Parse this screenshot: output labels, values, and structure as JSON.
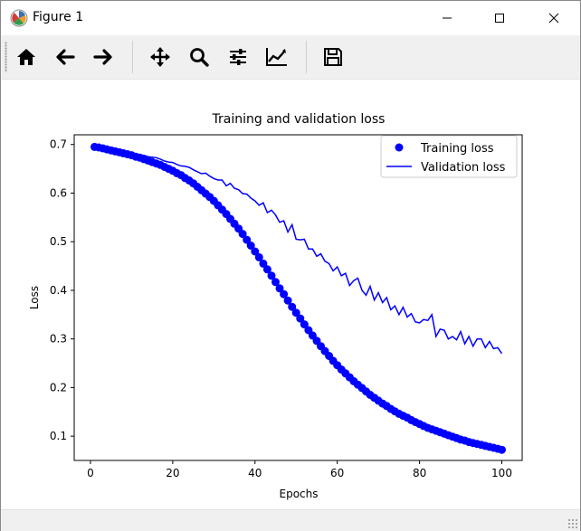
{
  "window": {
    "title": "Figure 1"
  },
  "toolbar": {
    "buttons": [
      {
        "name": "home",
        "icon": "home-icon"
      },
      {
        "name": "back",
        "icon": "arrow-left-icon"
      },
      {
        "name": "forward",
        "icon": "arrow-right-icon"
      },
      {
        "name": "pan",
        "icon": "move-icon"
      },
      {
        "name": "zoom",
        "icon": "search-icon"
      },
      {
        "name": "configure-subplots",
        "icon": "sliders-icon"
      },
      {
        "name": "edit-axis",
        "icon": "line-chart-icon"
      },
      {
        "name": "save",
        "icon": "save-icon"
      }
    ]
  },
  "colors": {
    "series": "#0000ff",
    "axis": "#000000"
  },
  "chart_data": {
    "type": "line",
    "title": "Training and validation loss",
    "xlabel": "Epochs",
    "ylabel": "Loss",
    "xlim": [
      -3.95,
      104.95
    ],
    "ylim": [
      0.05,
      0.72
    ],
    "xticks": [
      0,
      20,
      40,
      60,
      80,
      100
    ],
    "yticks": [
      0.1,
      0.2,
      0.3,
      0.4,
      0.5,
      0.6,
      0.7
    ],
    "xtick_labels": [
      "0",
      "20",
      "40",
      "60",
      "80",
      "100"
    ],
    "ytick_labels": [
      "0.1",
      "0.2",
      "0.3",
      "0.4",
      "0.5",
      "0.6",
      "0.7"
    ],
    "legend": {
      "position": "top-right",
      "labels": [
        "Training loss",
        "Validation loss"
      ]
    },
    "series": [
      {
        "name": "Training loss",
        "style": "markers",
        "x": [
          1,
          2,
          3,
          4,
          5,
          6,
          7,
          8,
          9,
          10,
          11,
          12,
          13,
          14,
          15,
          16,
          17,
          18,
          19,
          20,
          21,
          22,
          23,
          24,
          25,
          26,
          27,
          28,
          29,
          30,
          31,
          32,
          33,
          34,
          35,
          36,
          37,
          38,
          39,
          40,
          41,
          42,
          43,
          44,
          45,
          46,
          47,
          48,
          49,
          50,
          51,
          52,
          53,
          54,
          55,
          56,
          57,
          58,
          59,
          60,
          61,
          62,
          63,
          64,
          65,
          66,
          67,
          68,
          69,
          70,
          71,
          72,
          73,
          74,
          75,
          76,
          77,
          78,
          79,
          80,
          81,
          82,
          83,
          84,
          85,
          86,
          87,
          88,
          89,
          90,
          91,
          92,
          93,
          94,
          95,
          96,
          97,
          98,
          99,
          100
        ],
        "values": [
          0.695,
          0.694,
          0.692,
          0.69,
          0.688,
          0.686,
          0.684,
          0.682,
          0.68,
          0.678,
          0.675,
          0.673,
          0.67,
          0.667,
          0.664,
          0.661,
          0.658,
          0.654,
          0.65,
          0.646,
          0.641,
          0.637,
          0.631,
          0.626,
          0.62,
          0.613,
          0.606,
          0.599,
          0.592,
          0.584,
          0.575,
          0.566,
          0.557,
          0.547,
          0.537,
          0.527,
          0.516,
          0.504,
          0.492,
          0.48,
          0.468,
          0.455,
          0.443,
          0.43,
          0.417,
          0.404,
          0.392,
          0.379,
          0.366,
          0.354,
          0.342,
          0.33,
          0.318,
          0.307,
          0.296,
          0.285,
          0.275,
          0.265,
          0.255,
          0.246,
          0.237,
          0.229,
          0.221,
          0.213,
          0.206,
          0.199,
          0.192,
          0.185,
          0.179,
          0.173,
          0.167,
          0.162,
          0.156,
          0.151,
          0.146,
          0.142,
          0.138,
          0.133,
          0.129,
          0.125,
          0.121,
          0.117,
          0.114,
          0.111,
          0.108,
          0.105,
          0.102,
          0.099,
          0.096,
          0.093,
          0.091,
          0.088,
          0.086,
          0.084,
          0.082,
          0.08,
          0.078,
          0.076,
          0.074,
          0.072
        ]
      },
      {
        "name": "Validation loss",
        "style": "line",
        "x": [
          1,
          2,
          3,
          4,
          5,
          6,
          7,
          8,
          9,
          10,
          11,
          12,
          13,
          14,
          15,
          16,
          17,
          18,
          19,
          20,
          21,
          22,
          23,
          24,
          25,
          26,
          27,
          28,
          29,
          30,
          31,
          32,
          33,
          34,
          35,
          36,
          37,
          38,
          39,
          40,
          41,
          42,
          43,
          44,
          45,
          46,
          47,
          48,
          49,
          50,
          51,
          52,
          53,
          54,
          55,
          56,
          57,
          58,
          59,
          60,
          61,
          62,
          63,
          64,
          65,
          66,
          67,
          68,
          69,
          70,
          71,
          72,
          73,
          74,
          75,
          76,
          77,
          78,
          79,
          80,
          81,
          82,
          83,
          84,
          85,
          86,
          87,
          88,
          89,
          90,
          91,
          92,
          93,
          94,
          95,
          96,
          97,
          98,
          99,
          100
        ],
        "values": [
          0.693,
          0.691,
          0.692,
          0.689,
          0.688,
          0.687,
          0.685,
          0.685,
          0.683,
          0.681,
          0.679,
          0.678,
          0.678,
          0.675,
          0.674,
          0.673,
          0.67,
          0.666,
          0.664,
          0.663,
          0.659,
          0.656,
          0.655,
          0.653,
          0.648,
          0.644,
          0.64,
          0.641,
          0.635,
          0.63,
          0.627,
          0.627,
          0.615,
          0.62,
          0.61,
          0.607,
          0.599,
          0.598,
          0.59,
          0.584,
          0.575,
          0.58,
          0.56,
          0.565,
          0.555,
          0.54,
          0.543,
          0.52,
          0.535,
          0.505,
          0.504,
          0.505,
          0.485,
          0.485,
          0.47,
          0.475,
          0.46,
          0.455,
          0.44,
          0.448,
          0.43,
          0.435,
          0.41,
          0.42,
          0.425,
          0.4,
          0.39,
          0.408,
          0.38,
          0.395,
          0.375,
          0.385,
          0.36,
          0.368,
          0.35,
          0.365,
          0.345,
          0.352,
          0.335,
          0.333,
          0.34,
          0.338,
          0.35,
          0.305,
          0.32,
          0.318,
          0.3,
          0.305,
          0.298,
          0.315,
          0.29,
          0.305,
          0.285,
          0.3,
          0.3,
          0.282,
          0.295,
          0.28,
          0.282,
          0.27
        ]
      }
    ]
  }
}
